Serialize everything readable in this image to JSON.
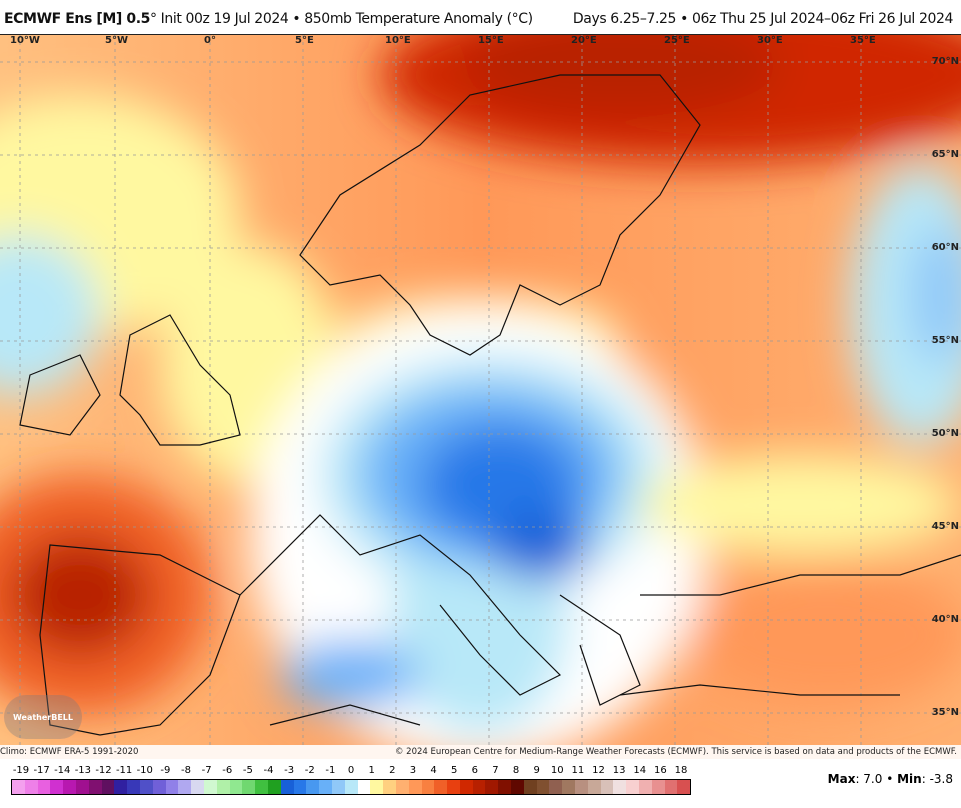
{
  "header": {
    "model": "ECMWF Ens [M] 0.5",
    "deg": "°",
    "init": " Init 00z 19 Jul 2024 • 850mb Temperature Anomaly (°C)",
    "valid": "Days 6.25–7.25 • 06z Thu 25 Jul 2024–06z Fri 26 Jul 2024"
  },
  "longitudes": [
    "10°W",
    "5°W",
    "0°",
    "5°E",
    "10°E",
    "15°E",
    "20°E",
    "25°E",
    "30°E",
    "35°E"
  ],
  "latitudes": [
    "70°N",
    "65°N",
    "60°N",
    "55°N",
    "50°N",
    "45°N",
    "40°N",
    "35°N"
  ],
  "footer": {
    "climo": "Climo: ECMWF ERA-5 1991-2020",
    "copyright": "© 2024 European Centre for Medium-Range Weather Forecasts (ECMWF). This service is based on data and products of the ECMWF."
  },
  "logo": "WeatherBELL",
  "colorbar": {
    "labels": [
      "-19",
      "-17",
      "-14",
      "-13",
      "-12",
      "-11",
      "-10",
      "-9",
      "-8",
      "-7",
      "-6",
      "-5",
      "-4",
      "-3",
      "-2",
      "-1",
      "0",
      "1",
      "2",
      "3",
      "4",
      "5",
      "6",
      "7",
      "8",
      "9",
      "10",
      "11",
      "12",
      "13",
      "14",
      "16",
      "18"
    ],
    "colors": [
      "#f4a0ee",
      "#ee80e8",
      "#e860e0",
      "#d030d0",
      "#b818b0",
      "#a01090",
      "#801070",
      "#601060",
      "#3020a0",
      "#3838b8",
      "#5050c8",
      "#7060d8",
      "#9080e8",
      "#b0a8f0",
      "#d8d8f0",
      "#d0f8d0",
      "#b0f0a8",
      "#90e890",
      "#70d870",
      "#40c040",
      "#20a020",
      "#1860d8",
      "#2878e8",
      "#4898f0",
      "#68b0f8",
      "#90c8f8",
      "#b8e8f8",
      "#ffffff",
      "#fff8a0",
      "#ffd080",
      "#ffb070",
      "#ff9858",
      "#f88040",
      "#f06028",
      "#e84010",
      "#d02800",
      "#b82000",
      "#a01800",
      "#801000",
      "#600800",
      "#704020",
      "#805030",
      "#906050",
      "#a07860",
      "#b89080",
      "#c8a898",
      "#d8c0b8",
      "#f0e0e0",
      "#f8d0d0",
      "#f0b0b0",
      "#e89090",
      "#e07070",
      "#d85050"
    ]
  },
  "stats": {
    "max_label": "Max",
    "max": "7.0",
    "min_label": "Min",
    "min": "-3.8"
  }
}
